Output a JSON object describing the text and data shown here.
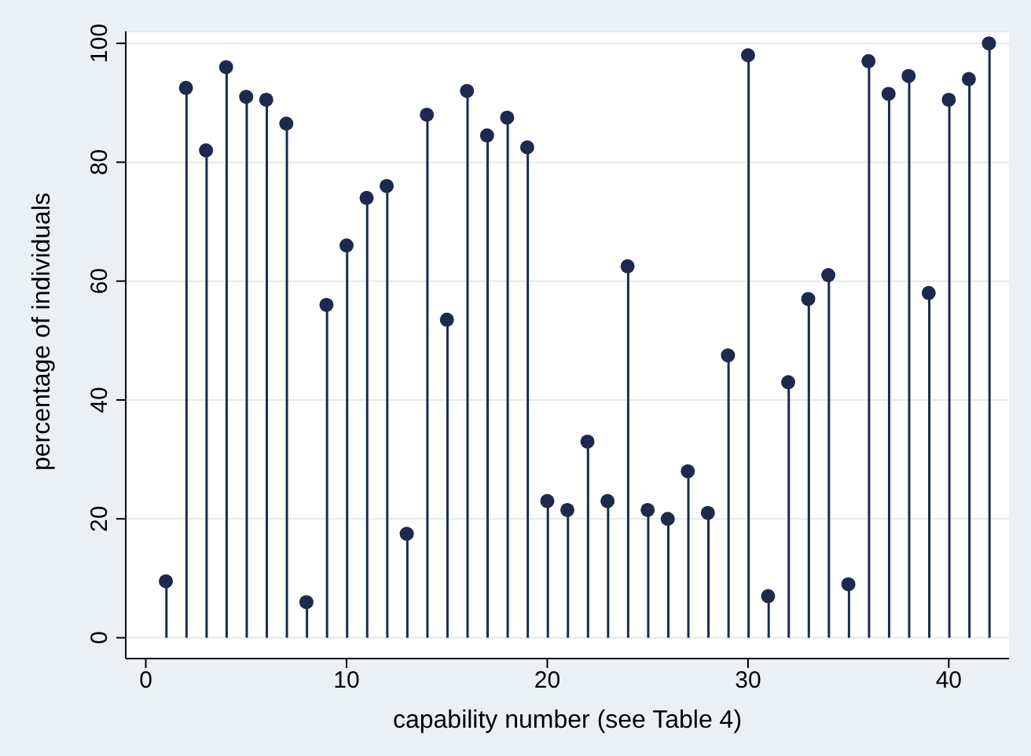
{
  "chart_data": {
    "type": "lollipop",
    "xlabel": "capability number (see Table 4)",
    "ylabel": "percentage of individuals",
    "x": [
      1,
      2,
      3,
      4,
      5,
      6,
      7,
      8,
      9,
      10,
      11,
      12,
      13,
      14,
      15,
      16,
      17,
      18,
      19,
      20,
      21,
      22,
      23,
      24,
      25,
      26,
      27,
      28,
      29,
      30,
      31,
      32,
      33,
      34,
      35,
      36,
      37,
      38,
      39,
      40,
      41,
      42
    ],
    "values": [
      9.5,
      92.5,
      82,
      96,
      91,
      90.5,
      86.5,
      6,
      56,
      66,
      74,
      76,
      17.5,
      88,
      53.5,
      92,
      84.5,
      87.5,
      82.5,
      23,
      21.5,
      33,
      23,
      62.5,
      21.5,
      20,
      28,
      21,
      47.5,
      98,
      7,
      43,
      57,
      61,
      9,
      97,
      91.5,
      94.5,
      58,
      90.5,
      94,
      100
    ],
    "color": "#1c2a4e",
    "marker": "circle",
    "xlim": [
      -1,
      43
    ],
    "xticks": [
      0,
      10,
      20,
      30,
      40
    ],
    "ylim": [
      -3.5,
      102
    ],
    "yticks": [
      0,
      20,
      40,
      60,
      80,
      100
    ],
    "grid": "y"
  }
}
